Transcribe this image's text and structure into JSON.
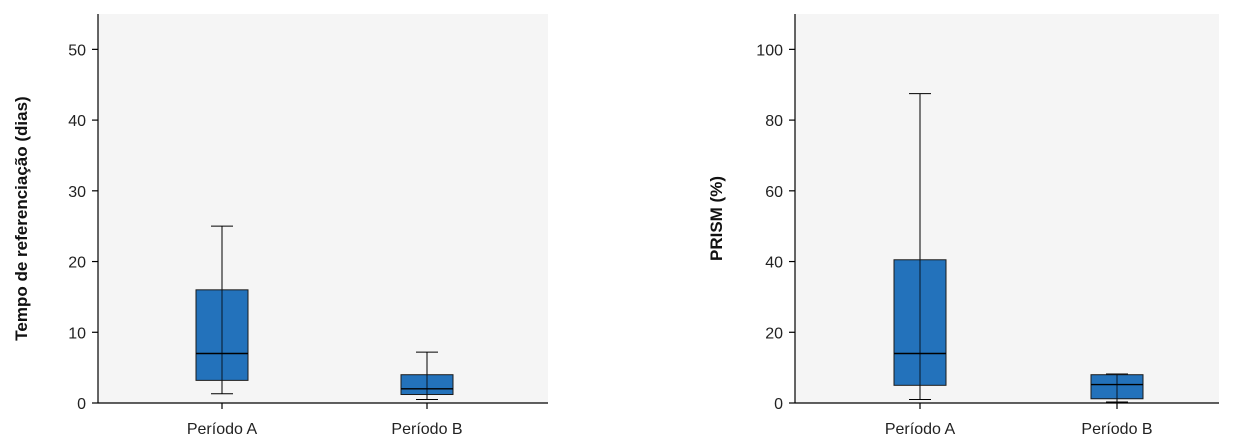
{
  "chart_data": [
    {
      "type": "boxplot",
      "title": "",
      "xlabel": "",
      "ylabel": "Tempo de referenciação (dias)",
      "ylim": [
        0,
        55
      ],
      "yticks": [
        0,
        10,
        20,
        30,
        40,
        50
      ],
      "categories": [
        "Período A",
        "Período B"
      ],
      "boxes": [
        {
          "name": "Período A",
          "min": 1.3,
          "q1": 3.2,
          "median": 7,
          "q3": 16,
          "max": 25
        },
        {
          "name": "Período B",
          "min": 0.5,
          "q1": 1.2,
          "median": 2,
          "q3": 4,
          "max": 7.2
        }
      ],
      "grid": false,
      "colors": {
        "box": "#2372bb",
        "plot_bg": "#f5f5f5"
      }
    },
    {
      "type": "boxplot",
      "title": "",
      "xlabel": "",
      "ylabel": "PRISM (%)",
      "ylim": [
        0,
        110
      ],
      "yticks": [
        0,
        20,
        40,
        60,
        80,
        100
      ],
      "categories": [
        "Período A",
        "Período B"
      ],
      "boxes": [
        {
          "name": "Período A",
          "min": 1,
          "q1": 5,
          "median": 14,
          "q3": 40.5,
          "max": 87.5
        },
        {
          "name": "Período B",
          "min": 0.3,
          "q1": 1.2,
          "median": 5.2,
          "q3": 8,
          "max": 8.2
        }
      ],
      "grid": false,
      "colors": {
        "box": "#2372bb",
        "plot_bg": "#f5f5f5"
      }
    }
  ]
}
